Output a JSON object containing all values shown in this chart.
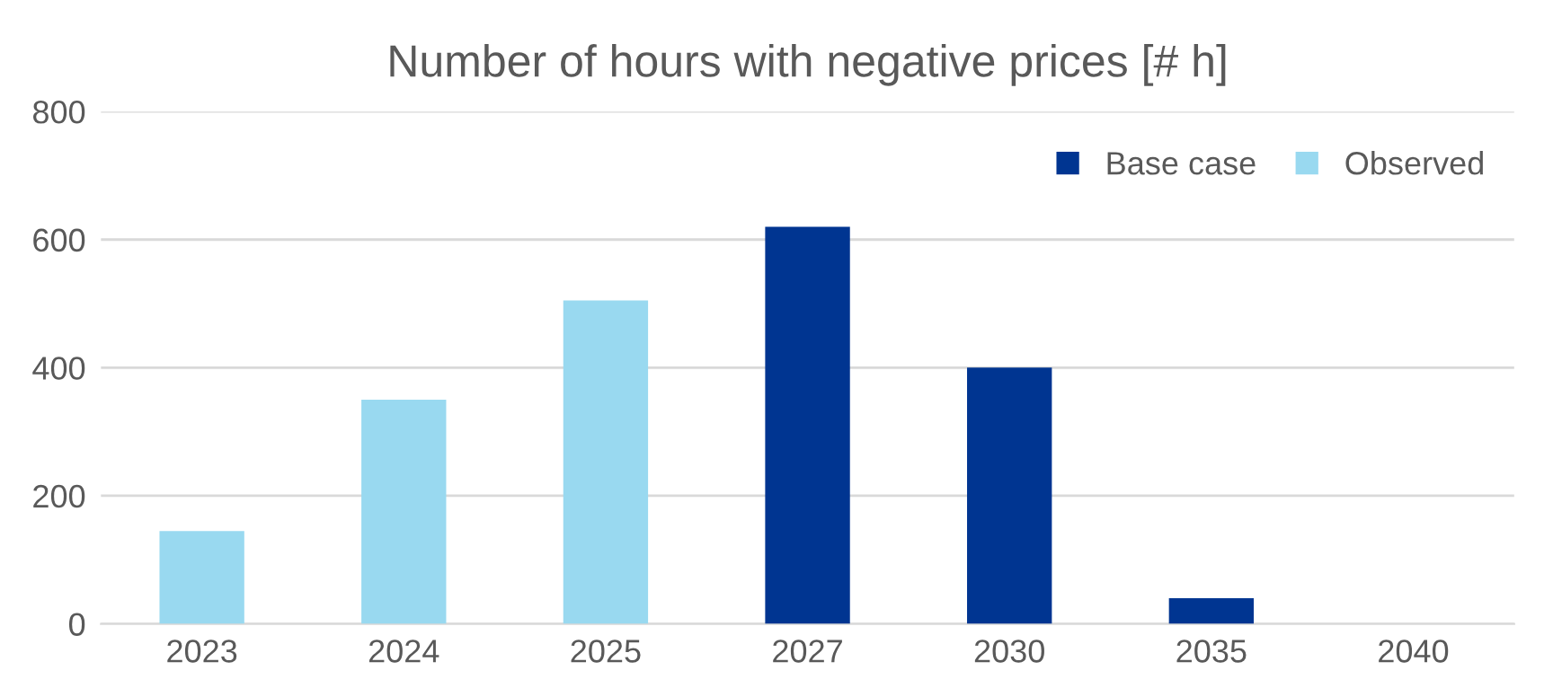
{
  "chart_data": {
    "type": "bar",
    "title": "Number of hours with negative prices [# h]",
    "categories": [
      "2023",
      "2024",
      "2025",
      "2027",
      "2030",
      "2035",
      "2040"
    ],
    "series": [
      {
        "name": "Base case",
        "color": "#003591",
        "values": [
          null,
          null,
          null,
          620,
          400,
          40,
          0
        ]
      },
      {
        "name": "Observed",
        "color": "#99d9f0",
        "values": [
          145,
          350,
          505,
          null,
          null,
          null,
          null
        ]
      }
    ],
    "stacked": true,
    "ylim": [
      0,
      800
    ],
    "yticks": [
      0,
      200,
      400,
      600,
      800
    ],
    "grid": "y",
    "legend": "top right"
  }
}
